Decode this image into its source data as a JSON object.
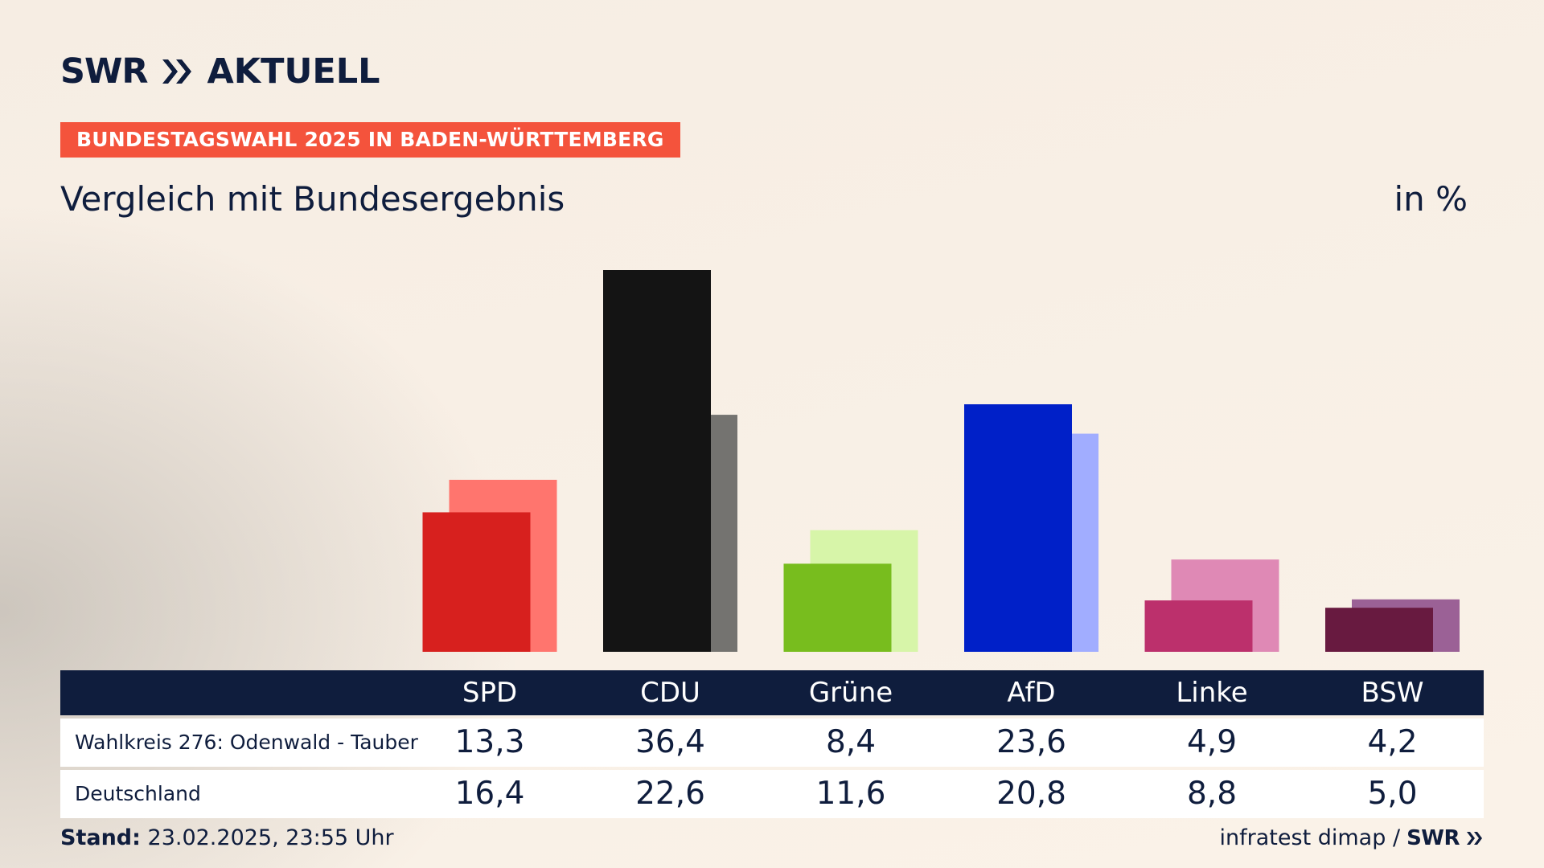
{
  "brand": {
    "logo_swr": "SWR",
    "logo_aktuell": "AKTUELL",
    "logo_icon": "swr-chevrons-icon"
  },
  "banner": "BUNDESTAGSWAHL 2025 IN BADEN-WÜRTTEMBERG",
  "title": "Vergleich mit Bundesergebnis",
  "unit": "in %",
  "footer": {
    "stand_label": "Stand:",
    "stand_value": "23.02.2025, 23:55 Uhr",
    "source": "infratest dimap /",
    "source_brand": "SWR"
  },
  "colors": {
    "text": "#0f1d3d",
    "banner_bg": "#f4533c",
    "table_header_bg": "#0f1d3d"
  },
  "chart_data": {
    "type": "bar",
    "categories": [
      "SPD",
      "CDU",
      "Grüne",
      "AfD",
      "Linke",
      "BSW"
    ],
    "series": [
      {
        "name": "Wahlkreis 276: Odenwald - Tauber",
        "values": [
          13.3,
          36.4,
          8.4,
          23.6,
          4.9,
          4.2
        ],
        "labels": [
          "13,3",
          "36,4",
          "8,4",
          "23,6",
          "4,9",
          "4,2"
        ],
        "colors": [
          "#d7201e",
          "#141414",
          "#78bd1e",
          "#0020c8",
          "#bc306c",
          "#681a40"
        ]
      },
      {
        "name": "Deutschland",
        "values": [
          16.4,
          22.6,
          11.6,
          20.8,
          8.8,
          5.0
        ],
        "labels": [
          "16,4",
          "22,6",
          "11,6",
          "20,8",
          "8,8",
          "5,0"
        ],
        "colors": [
          "#ff756e",
          "#747370",
          "#d7f5a9",
          "#a1adff",
          "#df89b5",
          "#9b6196"
        ]
      }
    ],
    "ylim": [
      0,
      36.4
    ],
    "grid": false,
    "legend": "table-below"
  }
}
